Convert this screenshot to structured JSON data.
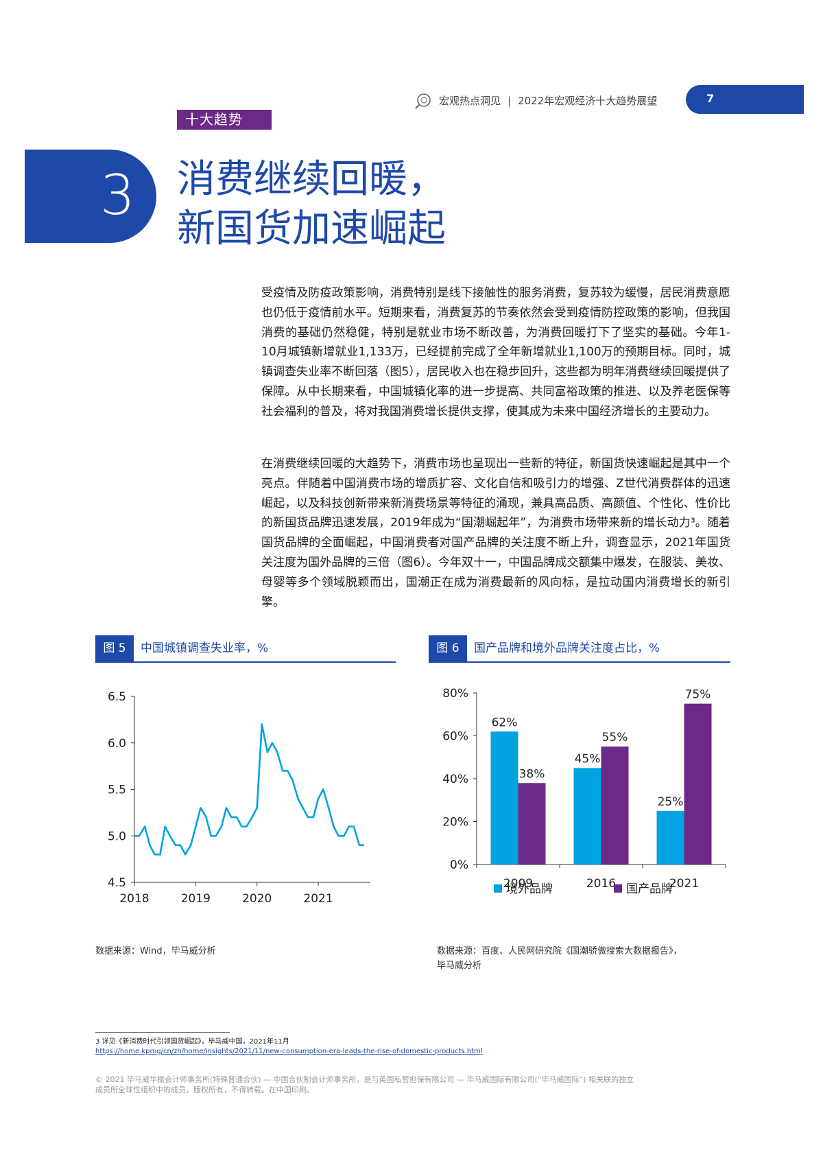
{
  "header": {
    "section": "宏观热点洞见",
    "separator": "|",
    "report": "2022年宏观经济十大趋势展望",
    "page": "7"
  },
  "badge": "十大趋势",
  "chapter": {
    "number": "3",
    "title_lines": [
      "消费继续回暖，",
      "新国货加速崛起"
    ]
  },
  "paragraphs": [
    "受疫情及防疫政策影响，消费特别是线下接触性的服务消费，复苏较为缓慢，居民消费意愿也仍低于疫情前水平。短期来看，消费复苏的节奏依然会受到疫情防控政策的影响，但我国消费的基础仍然稳健，特别是就业市场不断改善，为消费回暖打下了坚实的基础。今年1-10月城镇新增就业1,133万，已经提前完成了全年新增就业1,100万的预期目标。同时，城镇调查失业率不断回落（图5），居民收入也在稳步回升，这些都为明年消费继续回暖提供了保障。从中长期来看，中国城镇化率的进一步提高、共同富裕政策的推进、以及养老医保等社会福利的普及，将对我国消费增长提供支撑，使其成为未来中国经济增长的主要动力。",
    "在消费继续回暖的大趋势下，消费市场也呈现出一些新的特征，新国货快速崛起是其中一个亮点。伴随着中国消费市场的增质扩容、文化自信和吸引力的增强、Z世代消费群体的迅速崛起，以及科技创新带来新消费场景等特征的涌现，兼具高品质、高颜值、个性化、性价比的新国货品牌迅速发展，2019年成为“国潮崛起年”，为消费市场带来新的增长动力³。随着国货品牌的全面崛起，中国消费者对国产品牌的关注度不断上升，调查显示，2021年国货关注度为国外品牌的三倍（图6）。今年双十一，中国品牌成交额集中爆发，在服装、美妆、母婴等多个领域脱颖而出，国潮正在成为消费最新的风向标，是拉动国内消费增长的新引擎。"
  ],
  "figures": {
    "fig5": {
      "label": "图 5",
      "title": "中国城镇调查失业率，%",
      "source": "数据来源：Wind，毕马威分析"
    },
    "fig6": {
      "label": "图 6",
      "title": "国产品牌和境外品牌关注度占比，%",
      "source_lines": [
        "数据来源：百度、人民网研究院《国潮骄傲搜索大数据报告》，",
        "毕马威分析"
      ]
    }
  },
  "chart_data": [
    {
      "type": "line",
      "y_ticks": [
        "6.5",
        "6.0",
        "5.5",
        "5.0",
        "4.5"
      ],
      "x_ticks": [
        "2018",
        "2019",
        "2020",
        "2021"
      ],
      "ylim": [
        4.5,
        6.5
      ],
      "xlim": [
        2018.0,
        2021.85
      ],
      "color": "#00a3e0",
      "series": [
        {
          "x": [
            2018.0,
            2018.08,
            2018.17,
            2018.25,
            2018.33,
            2018.42,
            2018.5,
            2018.58,
            2018.67,
            2018.75,
            2018.83,
            2018.92,
            2019.0,
            2019.08,
            2019.17,
            2019.25,
            2019.33,
            2019.42,
            2019.5,
            2019.58,
            2019.67,
            2019.75,
            2019.83,
            2019.92,
            2020.0,
            2020.08,
            2020.17,
            2020.25,
            2020.33,
            2020.42,
            2020.5,
            2020.58,
            2020.67,
            2020.75,
            2020.83,
            2020.92,
            2021.0,
            2021.08,
            2021.17,
            2021.25,
            2021.33,
            2021.42,
            2021.5,
            2021.58,
            2021.67,
            2021.75
          ],
          "y": [
            5.0,
            5.0,
            5.1,
            4.9,
            4.8,
            4.8,
            5.1,
            5.0,
            4.9,
            4.9,
            4.8,
            4.9,
            5.1,
            5.3,
            5.2,
            5.0,
            5.0,
            5.1,
            5.3,
            5.2,
            5.2,
            5.1,
            5.1,
            5.2,
            5.3,
            6.2,
            5.9,
            6.0,
            5.9,
            5.7,
            5.7,
            5.6,
            5.4,
            5.3,
            5.2,
            5.2,
            5.4,
            5.5,
            5.3,
            5.1,
            5.0,
            5.0,
            5.1,
            5.1,
            4.9,
            4.9
          ]
        }
      ]
    },
    {
      "type": "bar",
      "categories": [
        "2009",
        "2016",
        "2021"
      ],
      "ylim": [
        0,
        80
      ],
      "y_ticks": [
        "80%",
        "60%",
        "40%",
        "20%",
        "0%"
      ],
      "series": [
        {
          "name": "境外品牌",
          "color": "#00a3e0",
          "values": [
            62,
            45,
            25
          ],
          "labels": [
            "62%",
            "45%",
            "25%"
          ]
        },
        {
          "name": "国产品牌",
          "color": "#6b2a87",
          "values": [
            38,
            55,
            75
          ],
          "labels": [
            "38%",
            "55%",
            "75%"
          ]
        }
      ]
    }
  ],
  "footnote": {
    "text": "3 详见《新消费时代引领国货崛起》，毕马威中国，2021年11月",
    "url": "https://home.kpmg/cn/zh/home/insights/2021/11/new-consumption-era-leads-the-rise-of-domestic-products.html"
  },
  "copyright": [
    "© 2021 毕马威华振会计师事务所(特殊普通合伙) — 中国合伙制会计师事务所，是与英国私营担保有限公司 — 毕马威国际有限公司(“毕马威国际”) 相关联的独立",
    "成员所全球性组织中的成员。版权所有，不得转载。在中国印刷。"
  ]
}
